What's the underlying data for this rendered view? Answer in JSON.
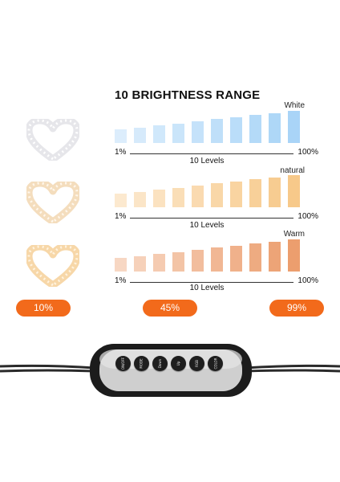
{
  "title": "10 BRIGHTNESS RANGE",
  "modes": [
    {
      "label": "White",
      "bar_color": "#a9d4f7",
      "heart_glow": "#e6e6ea",
      "scale_min": "1%",
      "scale_max": "100%",
      "levels_label": "10 Levels"
    },
    {
      "label": "natural",
      "bar_color": "#f7c98a",
      "heart_glow": "#f4ddbd",
      "scale_min": "1%",
      "scale_max": "100%",
      "levels_label": "10 Levels"
    },
    {
      "label": "Warm",
      "bar_color": "#ec9e6e",
      "heart_glow": "#f7d7a8",
      "scale_min": "1%",
      "scale_max": "100%",
      "levels_label": "10 Levels"
    }
  ],
  "brightness_levels": [
    1,
    2,
    3,
    4,
    5,
    6,
    7,
    8,
    9,
    10
  ],
  "percent_badges": [
    "10%",
    "45%",
    "99%"
  ],
  "accent_color": "#f26a1b",
  "controller": {
    "buttons": [
      {
        "label": "ON/OFF",
        "icon": "power-icon"
      },
      {
        "label": "MODE",
        "icon": "mode-icon"
      },
      {
        "label": "Down",
        "icon": "chevron-down-icon"
      },
      {
        "label": "Up",
        "icon": "chevron-up-icon"
      },
      {
        "label": "RGB",
        "icon": "rgb-icon"
      },
      {
        "label": "COLOR",
        "icon": "color-icon"
      }
    ]
  }
}
